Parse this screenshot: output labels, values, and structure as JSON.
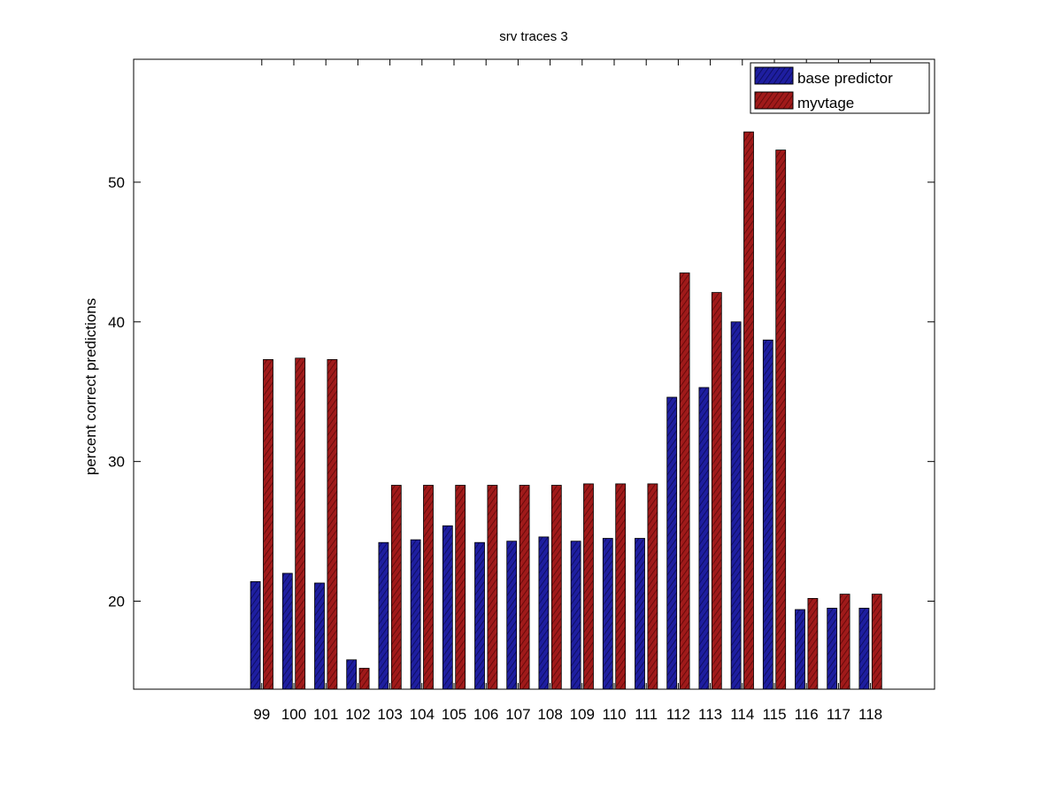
{
  "chart_data": {
    "type": "bar",
    "title": "srv traces 3",
    "xlabel": "",
    "ylabel": "percent correct predictions",
    "categories": [
      "99",
      "100",
      "101",
      "102",
      "103",
      "104",
      "105",
      "106",
      "107",
      "108",
      "109",
      "110",
      "111",
      "112",
      "113",
      "114",
      "115",
      "116",
      "117",
      "118"
    ],
    "x_lim": [
      95,
      120
    ],
    "ylim": [
      13.7,
      58.8
    ],
    "yticks": [
      20,
      30,
      40,
      50
    ],
    "series": [
      {
        "name": "base predictor",
        "color": "#1c1c8f",
        "values": [
          21.4,
          22.0,
          21.3,
          15.8,
          24.2,
          24.4,
          25.4,
          24.2,
          24.3,
          24.6,
          24.3,
          24.5,
          24.5,
          34.6,
          35.3,
          40.0,
          38.7,
          19.4,
          19.5,
          19.5
        ]
      },
      {
        "name": "myvtage",
        "color": "#8f1717",
        "values": [
          37.3,
          37.4,
          37.3,
          15.2,
          28.3,
          28.3,
          28.3,
          28.3,
          28.3,
          28.3,
          28.4,
          28.4,
          28.4,
          43.5,
          42.1,
          53.6,
          52.3,
          20.2,
          20.5,
          20.5
        ]
      }
    ],
    "legend_location": "top-right",
    "grid": false
  }
}
